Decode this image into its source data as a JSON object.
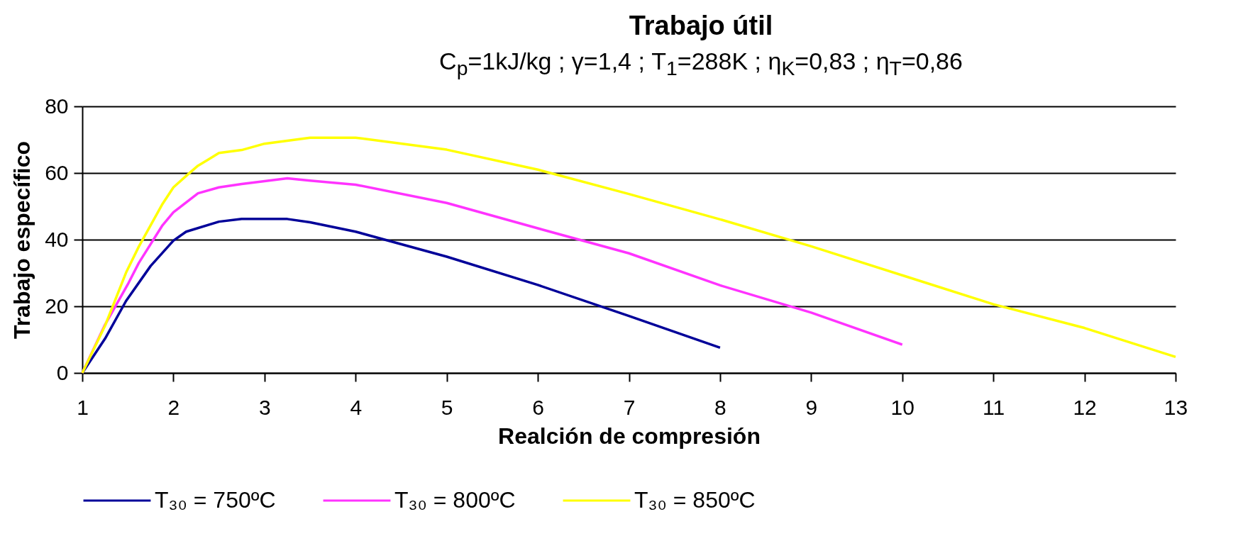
{
  "chart_data": {
    "type": "line",
    "title": "Trabajo útil",
    "subtitle": "C$_{p}$=1kJ/kg ; γ=1,4 ; T$_{1}$=288K ; η$_{K}$=0,83 ; η$_{T}$=0,86",
    "xlabel": "Realción de compresión",
    "ylabel": "Trabajo específico",
    "series": [
      {
        "name": "T₃₀ = 750ºC",
        "color": "#000099",
        "x": [
          1,
          1.25,
          1.48,
          1.75,
          2,
          2.14,
          2.5,
          2.75,
          3.25,
          3.5,
          4,
          5,
          6,
          7,
          8
        ],
        "values": [
          0,
          10.3,
          21.6,
          32.1,
          39.7,
          42.4,
          45.4,
          46.2,
          46.2,
          45.2,
          42.4,
          34.9,
          26.4,
          17.1,
          7.6
        ]
      },
      {
        "name": "T₃₀ = 800ºC",
        "color": "#ff33ff",
        "x": [
          1,
          1.25,
          1.5,
          1.62,
          1.88,
          2,
          2.27,
          2.5,
          2.75,
          3.25,
          3.5,
          4,
          5,
          6,
          7,
          8,
          9,
          10
        ],
        "values": [
          0,
          14.5,
          26.6,
          33,
          44.3,
          48.2,
          53.9,
          55.7,
          56.7,
          58.4,
          57.7,
          56.5,
          51,
          43.4,
          35.9,
          26.3,
          18.1,
          8.5
        ]
      },
      {
        "name": "T₃₀ = 850ºC",
        "color": "#ffff00",
        "x": [
          1,
          1.25,
          1.48,
          1.62,
          1.88,
          2,
          2.16,
          2.27,
          2.38,
          2.5,
          2.75,
          3,
          3.25,
          3.5,
          4,
          5,
          6,
          7,
          8,
          9,
          10,
          11,
          12,
          13
        ],
        "values": [
          0,
          14.2,
          30.1,
          37.9,
          50.7,
          55.7,
          59.6,
          62.2,
          64,
          66,
          66.9,
          68.8,
          69.7,
          70.6,
          70.6,
          67,
          61,
          53.7,
          46.1,
          38,
          29.3,
          20.6,
          13.5,
          4.8
        ]
      }
    ],
    "xlim": [
      1,
      13
    ],
    "xticks": [
      1,
      2,
      3,
      4,
      5,
      6,
      7,
      8,
      9,
      10,
      11,
      12,
      13
    ],
    "ylim": [
      0,
      80
    ],
    "yticks": [
      0,
      20,
      40,
      60,
      80
    ],
    "grid": "y",
    "legend": "bottom"
  }
}
